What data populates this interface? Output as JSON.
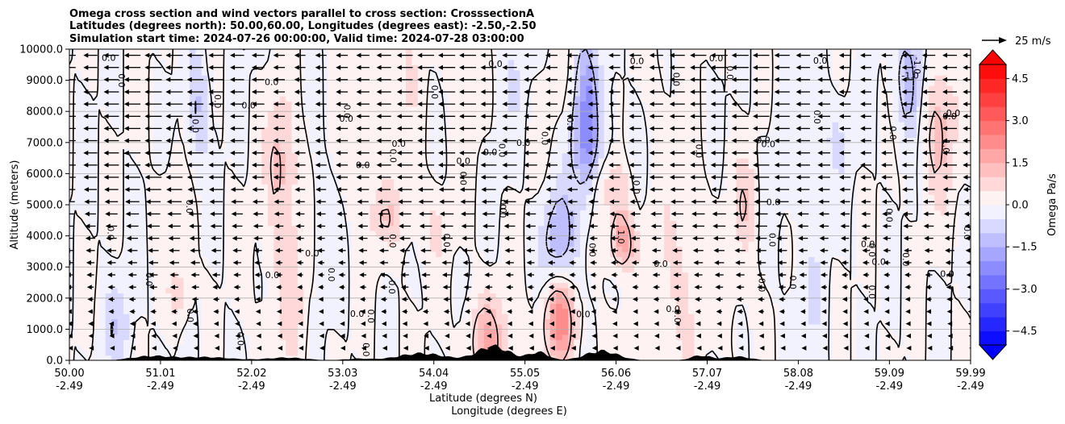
{
  "chart_data": {
    "type": "contour",
    "title": [
      "Omega cross section and wind vectors parallel to cross section: CrosssectionA",
      "Latitudes (degrees north): 50.00,60.00, Longitudes (degrees east): -2.50,-2.50",
      "Simulation start time: 2024-07-26 00:00:00, Valid time: 2024-07-28 03:00:00"
    ],
    "ylabel": "Altitude (meters)",
    "xlabel_1": "Latitude (degrees N)",
    "xlabel_2": "Longitude (degrees E)",
    "ylim": [
      0,
      10000
    ],
    "xlim": [
      50.0,
      59.99
    ],
    "yticks": [
      "0.0",
      "1000.0",
      "2000.0",
      "3000.0",
      "4000.0",
      "5000.0",
      "6000.0",
      "7000.0",
      "8000.0",
      "9000.0",
      "10000.0"
    ],
    "xticks": [
      {
        "lat": "50.00",
        "lon": "-2.49"
      },
      {
        "lat": "51.01",
        "lon": "-2.49"
      },
      {
        "lat": "52.02",
        "lon": "-2.49"
      },
      {
        "lat": "53.03",
        "lon": "-2.49"
      },
      {
        "lat": "54.04",
        "lon": "-2.49"
      },
      {
        "lat": "55.05",
        "lon": "-2.49"
      },
      {
        "lat": "56.06",
        "lon": "-2.49"
      },
      {
        "lat": "57.07",
        "lon": "-2.49"
      },
      {
        "lat": "58.08",
        "lon": "-2.49"
      },
      {
        "lat": "59.09",
        "lon": "-2.49"
      },
      {
        "lat": "59.99",
        "lon": "-2.49"
      }
    ],
    "colorbar": {
      "label": "Omega Pa/s",
      "range": [
        -5.0,
        5.0
      ],
      "ticks": [
        "4.5",
        "3.0",
        "1.5",
        "0.0",
        "−1.5",
        "−3.0",
        "−4.5"
      ],
      "high_color": "#ff0000",
      "low_color": "#0000ff"
    },
    "quiver_key": "25 m/s",
    "contour_levels": [
      -1.0,
      0.0,
      1.0
    ],
    "contour_labels": [
      "0.0",
      "1.0",
      "-1.0"
    ],
    "omega_features": [
      {
        "lat": 56.1,
        "z": 3800,
        "value": 2.0
      },
      {
        "lat": 55.4,
        "z": 1300,
        "value": 2.5
      },
      {
        "lat": 55.4,
        "z": 3800,
        "value": -1.5
      },
      {
        "lat": 55.7,
        "z": 7800,
        "value": -2.0
      },
      {
        "lat": 56.0,
        "z": 5500,
        "value": 1.0
      },
      {
        "lat": 54.6,
        "z": 600,
        "value": 1.5
      },
      {
        "lat": 51.4,
        "z": 8000,
        "value": -1.0
      },
      {
        "lat": 52.3,
        "z": 6500,
        "value": 1.0
      },
      {
        "lat": 53.5,
        "z": 4500,
        "value": 0.8
      },
      {
        "lat": 57.5,
        "z": 5000,
        "value": 0.8
      },
      {
        "lat": 59.3,
        "z": 9000,
        "value": -1.5
      },
      {
        "lat": 59.6,
        "z": 7500,
        "value": 1.2
      },
      {
        "lat": 51.2,
        "z": 2000,
        "value": 0.8
      },
      {
        "lat": 50.5,
        "z": 1000,
        "value": -0.8
      }
    ]
  }
}
